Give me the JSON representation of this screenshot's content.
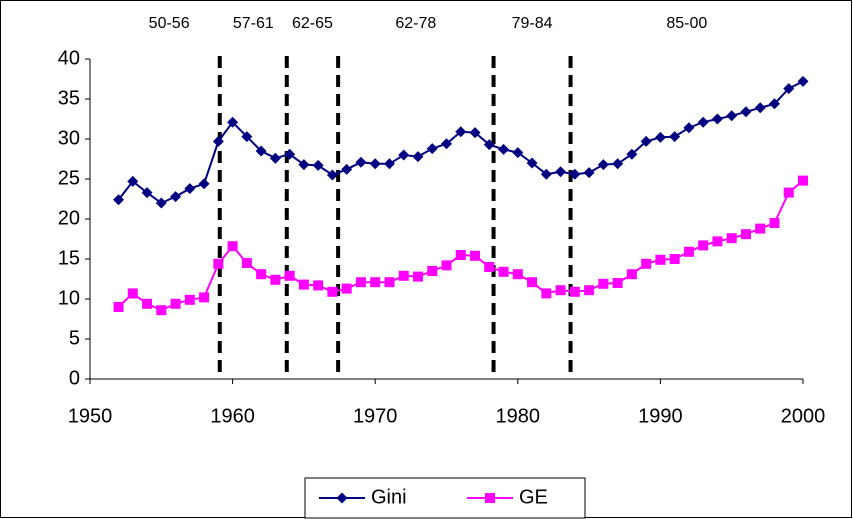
{
  "chart_data": {
    "type": "line",
    "x": [
      1952,
      1953,
      1954,
      1955,
      1956,
      1957,
      1958,
      1959,
      1960,
      1961,
      1962,
      1963,
      1964,
      1965,
      1966,
      1967,
      1968,
      1969,
      1970,
      1971,
      1972,
      1973,
      1974,
      1975,
      1976,
      1977,
      1978,
      1979,
      1980,
      1981,
      1982,
      1983,
      1984,
      1985,
      1986,
      1987,
      1988,
      1989,
      1990,
      1991,
      1992,
      1993,
      1994,
      1995,
      1996,
      1997,
      1998,
      1999,
      2000
    ],
    "series": [
      {
        "name": "Gini",
        "color": "#000080",
        "marker": "diamond",
        "values": [
          22.4,
          24.7,
          23.3,
          22.0,
          22.8,
          23.8,
          24.4,
          29.7,
          32.1,
          30.3,
          28.5,
          27.6,
          28.1,
          26.8,
          26.7,
          25.5,
          26.2,
          27.1,
          26.9,
          26.9,
          28.0,
          27.8,
          28.8,
          29.4,
          30.9,
          30.8,
          29.3,
          28.7,
          28.3,
          27.0,
          25.6,
          25.9,
          25.6,
          25.8,
          26.8,
          26.9,
          28.1,
          29.7,
          30.2,
          30.3,
          31.4,
          32.1,
          32.5,
          32.9,
          33.4,
          33.9,
          34.4,
          36.3,
          37.2
        ]
      },
      {
        "name": "GE",
        "color": "#FF00FF",
        "marker": "square",
        "values": [
          9.0,
          10.7,
          9.4,
          8.6,
          9.4,
          9.9,
          10.2,
          14.4,
          16.6,
          14.5,
          13.1,
          12.4,
          12.9,
          11.8,
          11.7,
          10.9,
          11.3,
          12.1,
          12.1,
          12.1,
          12.9,
          12.8,
          13.5,
          14.2,
          15.5,
          15.4,
          14.0,
          13.4,
          13.1,
          12.1,
          10.7,
          11.1,
          10.9,
          11.1,
          11.9,
          12.0,
          13.1,
          14.4,
          14.9,
          15.0,
          15.9,
          16.7,
          17.2,
          17.6,
          18.1,
          18.8,
          19.5,
          23.3,
          24.8
        ]
      }
    ],
    "breaks": [
      1959.1,
      1963.8,
      1967.4,
      1978.3,
      1983.7
    ],
    "periods": [
      "50-56",
      "57-61",
      "62-65",
      "62-78",
      "79-84",
      "85-00"
    ],
    "xlim": [
      1950,
      2000
    ],
    "xticks": [
      1950,
      1960,
      1970,
      1980,
      1990,
      2000
    ],
    "ylim": [
      0,
      40
    ],
    "yticks": [
      0,
      5,
      10,
      15,
      20,
      25,
      30,
      35,
      40
    ],
    "legend": "bottom"
  }
}
